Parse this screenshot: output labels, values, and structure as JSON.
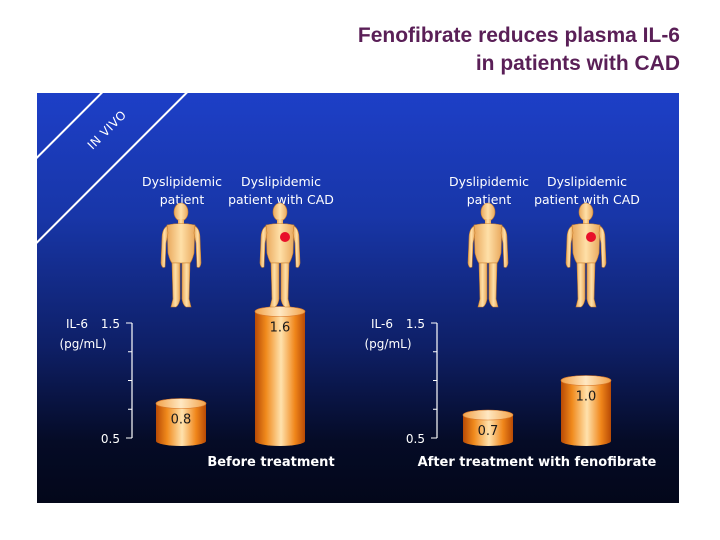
{
  "slide": {
    "title_line1": "Fenofibrate reduces plasma IL-6",
    "title_line2": "in patients with CAD",
    "badge": "IN VIVO"
  },
  "colors": {
    "title": "#5a1f57",
    "bar_light": "#ffd89a",
    "bar_dark": "#e06a10",
    "body": "#fbcf88",
    "marker": "#e8102a"
  },
  "icons": [
    "human-figure-icon",
    "cad-heart-marker-icon"
  ],
  "chart_data": [
    {
      "type": "bar",
      "title": "",
      "xlabel": "Before treatment",
      "ylabel": "IL-6",
      "yunit": "(pg/mL)",
      "yticks": [
        "0.5",
        "1.5"
      ],
      "ylim": [
        0.5,
        1.5
      ],
      "categories": [
        "Dyslipidemic patient",
        "Dyslipidemic patient with CAD"
      ],
      "category_lines": [
        [
          "Dyslipidemic",
          "patient"
        ],
        [
          "Dyslipidemic",
          "patient with CAD"
        ]
      ],
      "values": [
        0.8,
        1.6
      ],
      "value_labels": [
        "0.8",
        "1.6"
      ]
    },
    {
      "type": "bar",
      "title": "",
      "xlabel": "After treatment with fenofibrate",
      "ylabel": "IL-6",
      "yunit": "(pg/mL)",
      "yticks": [
        "0.5",
        "1.5"
      ],
      "ylim": [
        0.5,
        1.5
      ],
      "categories": [
        "Dyslipidemic patient",
        "Dyslipidemic patient with CAD"
      ],
      "category_lines": [
        [
          "Dyslipidemic",
          "patient"
        ],
        [
          "Dyslipidemic",
          "patient with CAD"
        ]
      ],
      "values": [
        0.7,
        1.0
      ],
      "value_labels": [
        "0.7",
        "1.0"
      ]
    }
  ]
}
